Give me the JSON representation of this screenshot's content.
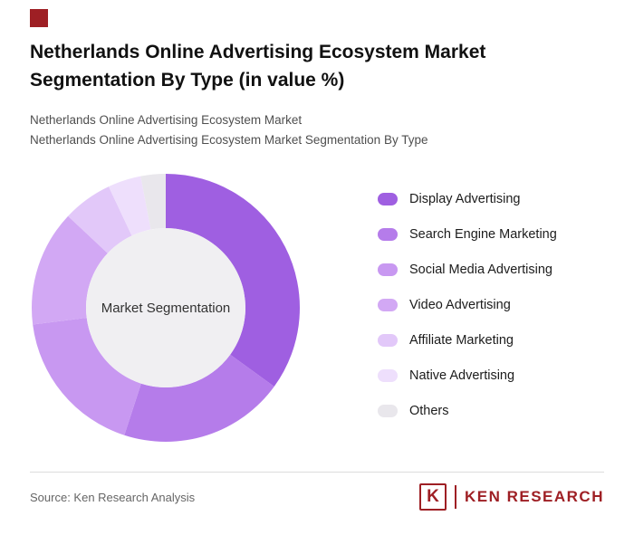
{
  "brand": {
    "accent_color": "#9e1f24",
    "logo_letter": "K",
    "logo_text": "KEN RESEARCH"
  },
  "header": {
    "title": "Netherlands Online Advertising Ecosystem Market Segmentation By Type (in value %)",
    "subtitle1": "Netherlands Online Advertising Ecosystem Market",
    "subtitle2": "Netherlands Online Advertising Ecosystem Market Segmentation By Type"
  },
  "chart_data": {
    "type": "pie",
    "variant": "donut",
    "title": "Netherlands Online Advertising Ecosystem Market Segmentation By Type (in value %)",
    "center_label": "Market Segmentation",
    "center_color": "#f0eff2",
    "legend_position": "right",
    "units": "value %",
    "start_angle_deg": 0,
    "direction": "clockwise",
    "segments": [
      {
        "label": "Display Advertising",
        "value": 35,
        "color": "#9f5fe1"
      },
      {
        "label": "Search Engine Marketing",
        "value": 20,
        "color": "#b57cea"
      },
      {
        "label": "Social Media Advertising",
        "value": 18,
        "color": "#c898f1"
      },
      {
        "label": "Video Advertising",
        "value": 14,
        "color": "#d2a8f4"
      },
      {
        "label": "Affiliate Marketing",
        "value": 6,
        "color": "#e2c8f9"
      },
      {
        "label": "Native Advertising",
        "value": 4,
        "color": "#eedffc"
      },
      {
        "label": "Others",
        "value": 3,
        "color": "#e9e7ec"
      }
    ]
  },
  "footer": {
    "source": "Source: Ken Research Analysis"
  }
}
